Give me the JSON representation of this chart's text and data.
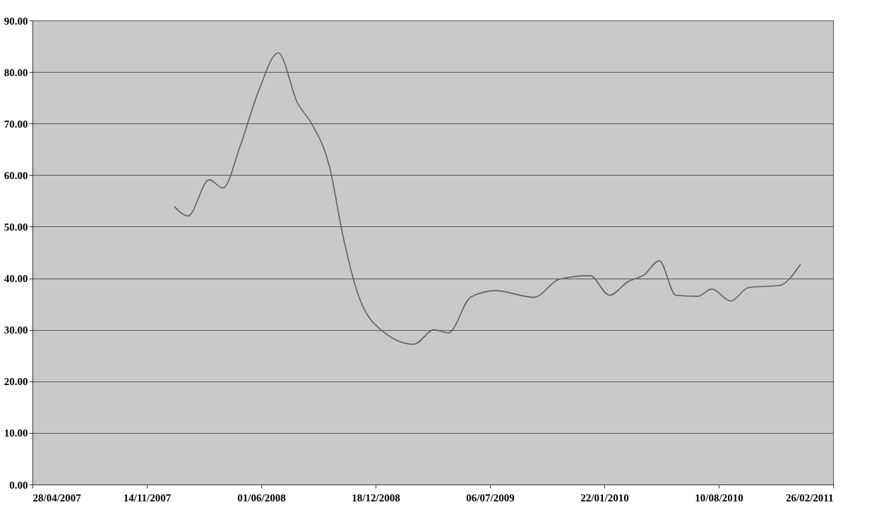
{
  "chart_data": {
    "type": "line",
    "x": [
      "2008-01-01",
      "2008-01-25",
      "2008-03-02",
      "2008-03-26",
      "2008-04-26",
      "2008-05-27",
      "2008-07-01",
      "2008-08-03",
      "2008-08-28",
      "2008-09-28",
      "2008-10-22",
      "2008-11-16",
      "2009-01-02",
      "2009-02-23",
      "2009-03-30",
      "2009-04-24",
      "2009-06-03",
      "2009-07-16",
      "2009-09-21",
      "2009-11-04",
      "2009-12-28",
      "2010-01-31",
      "2010-03-05",
      "2010-04-01",
      "2010-04-28",
      "2010-05-27",
      "2010-07-04",
      "2010-07-29",
      "2010-08-31",
      "2010-10-01",
      "2010-11-24",
      "2010-12-31"
    ],
    "series": [
      {
        "color": "#606060",
        "values": [
          53.9,
          52.1,
          59.1,
          57.5,
          65.9,
          76.2,
          83.7,
          74.1,
          70.0,
          61.8,
          48.2,
          37.3,
          29.5,
          27.2,
          30.0,
          29.4,
          36.4,
          37.6,
          36.3,
          39.8,
          40.5,
          36.7,
          39.4,
          40.6,
          43.4,
          36.7,
          36.5,
          37.9,
          35.6,
          38.2,
          38.6,
          42.7
        ]
      }
    ],
    "xlim": [
      "2007-04-28",
      "2011-02-26"
    ],
    "xticks": [
      {
        "value": "2007-04-28",
        "label": "28/04/2007"
      },
      {
        "value": "2007-11-14",
        "label": "14/11/2007"
      },
      {
        "value": "2008-06-01",
        "label": "01/06/2008"
      },
      {
        "value": "2008-12-18",
        "label": "18/12/2008"
      },
      {
        "value": "2009-07-06",
        "label": "06/07/2009"
      },
      {
        "value": "2010-01-22",
        "label": "22/01/2010"
      },
      {
        "value": "2010-08-10",
        "label": "10/08/2010"
      },
      {
        "value": "2011-02-26",
        "label": "26/02/2011"
      }
    ],
    "ylim": [
      0,
      90
    ],
    "yticks": [
      {
        "value": 0,
        "label": "0.00"
      },
      {
        "value": 10,
        "label": "10.00"
      },
      {
        "value": 20,
        "label": "20.00"
      },
      {
        "value": 30,
        "label": "30.00"
      },
      {
        "value": 40,
        "label": "40.00"
      },
      {
        "value": 50,
        "label": "50.00"
      },
      {
        "value": 60,
        "label": "60.00"
      },
      {
        "value": 70,
        "label": "70.00"
      },
      {
        "value": 80,
        "label": "80.00"
      },
      {
        "value": 90,
        "label": "90.00"
      }
    ],
    "grid": "y",
    "legend": false,
    "marker": "none",
    "line_style": "solid"
  }
}
